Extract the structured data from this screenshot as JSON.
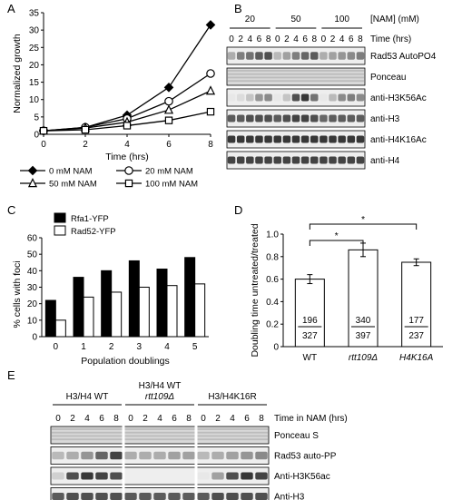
{
  "panels": {
    "a": {
      "letter": "A"
    },
    "b": {
      "letter": "B"
    },
    "c": {
      "letter": "C"
    },
    "d": {
      "letter": "D"
    },
    "e": {
      "letter": "E"
    }
  },
  "chart_data": [
    {
      "panel": "A",
      "type": "line",
      "xlabel": "Time (hrs)",
      "ylabel": "Normalized growth",
      "xlim": [
        0,
        8
      ],
      "ylim": [
        0,
        35
      ],
      "x": [
        0,
        2,
        4,
        6,
        8
      ],
      "xticks": [
        "0",
        "2",
        "4",
        "6",
        "8"
      ],
      "yticks": [
        "0",
        "5",
        "10",
        "15",
        "20",
        "25",
        "30",
        "35"
      ],
      "series": [
        {
          "name": "0 mM NAM",
          "marker": "diamond-filled",
          "values": [
            1,
            2,
            5.5,
            13.5,
            31.5
          ]
        },
        {
          "name": "20 mM NAM",
          "marker": "circle-open",
          "values": [
            1,
            2,
            4.5,
            9.5,
            17.5
          ]
        },
        {
          "name": "50 mM NAM",
          "marker": "triangle-open",
          "values": [
            1,
            1.8,
            3.5,
            7,
            12.5
          ]
        },
        {
          "name": "100 mM NAM",
          "marker": "square-open",
          "values": [
            1,
            1.3,
            2.5,
            4,
            6.5
          ]
        }
      ],
      "legend_position": "bottom"
    },
    {
      "panel": "C",
      "type": "bar",
      "xlabel": "Population doublings",
      "ylabel": "% cells with foci",
      "ylim": [
        0,
        60
      ],
      "categories": [
        "0",
        "1",
        "2",
        "3",
        "4",
        "5"
      ],
      "yticks": [
        "0",
        "10",
        "20",
        "30",
        "40",
        "50",
        "60"
      ],
      "series": [
        {
          "name": "Rfa1-YFP",
          "color": "#000000",
          "values": [
            22,
            36,
            40,
            46,
            41,
            48
          ]
        },
        {
          "name": "Rad52-YFP",
          "color": "#ffffff",
          "values": [
            10,
            24,
            27,
            30,
            31,
            32
          ]
        }
      ],
      "legend_position": "top-left"
    },
    {
      "panel": "D",
      "type": "bar",
      "ylabel": "Doubling time untreated/treated",
      "ylim": [
        0,
        1.0
      ],
      "categories": [
        "WT",
        "rtt109Δ",
        "H4K16A"
      ],
      "category_italic": [
        false,
        true,
        true
      ],
      "yticks": [
        "0",
        "0.2",
        "0.4",
        "0.6",
        "0.8",
        "1.0"
      ],
      "values": [
        0.6,
        0.86,
        0.75
      ],
      "errors": [
        0.04,
        0.06,
        0.03
      ],
      "numerators": [
        "196",
        "340",
        "177"
      ],
      "denominators": [
        "327",
        "397",
        "237"
      ],
      "significance": [
        {
          "from": 0,
          "to": 1,
          "label": "*"
        },
        {
          "from": 0,
          "to": 2,
          "label": "*"
        }
      ]
    }
  ],
  "blot_b": {
    "header_label": "[NAM] (mM)",
    "time_label": "Time (hrs)",
    "groups": [
      {
        "label": "20",
        "times": [
          "0",
          "2",
          "4",
          "6",
          "8"
        ]
      },
      {
        "label": "50",
        "times": [
          "0",
          "2",
          "4",
          "6",
          "8"
        ]
      },
      {
        "label": "100",
        "times": [
          "0",
          "2",
          "4",
          "6",
          "8"
        ]
      }
    ],
    "rows": [
      {
        "label": "Rad53 AutoPO4",
        "kind": "auto",
        "intensity": [
          0.35,
          0.55,
          0.6,
          0.7,
          0.75,
          0.3,
          0.4,
          0.55,
          0.65,
          0.7,
          0.35,
          0.4,
          0.45,
          0.5,
          0.55
        ]
      },
      {
        "label": "Ponceau",
        "kind": "smear",
        "intensity": [
          0.5,
          0.5,
          0.5,
          0.5,
          0.5,
          0.5,
          0.5,
          0.5,
          0.5,
          0.5,
          0.5,
          0.5,
          0.5,
          0.5,
          0.5
        ]
      },
      {
        "label": "anti-H3K56Ac",
        "kind": "band",
        "intensity": [
          0.1,
          0.15,
          0.25,
          0.45,
          0.5,
          0.1,
          0.25,
          0.75,
          0.85,
          0.6,
          0.1,
          0.3,
          0.5,
          0.55,
          0.5
        ]
      },
      {
        "label": "anti-H3",
        "kind": "band",
        "intensity": [
          0.7,
          0.7,
          0.75,
          0.75,
          0.75,
          0.7,
          0.75,
          0.8,
          0.8,
          0.75,
          0.65,
          0.7,
          0.7,
          0.7,
          0.7
        ]
      },
      {
        "label": "anti-H4K16Ac",
        "kind": "band",
        "intensity": [
          0.85,
          0.85,
          0.85,
          0.85,
          0.85,
          0.85,
          0.85,
          0.85,
          0.85,
          0.85,
          0.85,
          0.85,
          0.85,
          0.85,
          0.85
        ]
      },
      {
        "label": "anti-H4",
        "kind": "band",
        "intensity": [
          0.8,
          0.8,
          0.8,
          0.8,
          0.8,
          0.8,
          0.8,
          0.8,
          0.8,
          0.8,
          0.8,
          0.8,
          0.8,
          0.8,
          0.8
        ]
      }
    ]
  },
  "blot_e": {
    "time_label": "Time in NAM (hrs)",
    "groups": [
      {
        "label_line1": "H3/H4 WT",
        "label_line2": "",
        "times": [
          "0",
          "2",
          "4",
          "6",
          "8"
        ]
      },
      {
        "label_line1": "H3/H4 WT",
        "label_line2": "rtt109Δ",
        "times": [
          "0",
          "2",
          "4",
          "6",
          "8"
        ]
      },
      {
        "label_line1": "H3/H4K16R",
        "label_line2": "",
        "times": [
          "0",
          "2",
          "4",
          "6",
          "8"
        ]
      }
    ],
    "rows": [
      {
        "label": "Ponceau S",
        "kind": "smear",
        "intensity": [
          0.5,
          0.5,
          0.5,
          0.5,
          0.5,
          0.5,
          0.5,
          0.5,
          0.5,
          0.5,
          0.5,
          0.5,
          0.5,
          0.5,
          0.5
        ]
      },
      {
        "label": "Rad53 auto-PP",
        "kind": "auto",
        "intensity": [
          0.3,
          0.35,
          0.45,
          0.65,
          0.8,
          0.35,
          0.35,
          0.35,
          0.4,
          0.4,
          0.3,
          0.35,
          0.4,
          0.45,
          0.5
        ]
      },
      {
        "label": "Anti-H3K56ac",
        "kind": "band",
        "intensity": [
          0.2,
          0.75,
          0.85,
          0.8,
          0.75,
          0.0,
          0.0,
          0.0,
          0.0,
          0.0,
          0.1,
          0.4,
          0.75,
          0.85,
          0.8
        ]
      },
      {
        "label": "Anti-H3",
        "kind": "band",
        "intensity": [
          0.7,
          0.75,
          0.75,
          0.75,
          0.75,
          0.7,
          0.7,
          0.7,
          0.7,
          0.7,
          0.7,
          0.75,
          0.75,
          0.75,
          0.75
        ]
      }
    ]
  }
}
